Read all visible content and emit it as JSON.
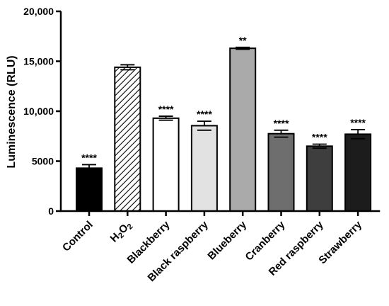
{
  "chart_data": {
    "type": "bar",
    "title": "",
    "xlabel": "",
    "ylabel": "Luminescence (RLU)",
    "ylim": [
      0,
      20000
    ],
    "yticks": [
      {
        "value": 0,
        "label": "0"
      },
      {
        "value": 5000,
        "label": "5000"
      },
      {
        "value": 10000,
        "label": "10,000"
      },
      {
        "value": 15000,
        "label": "15,000"
      },
      {
        "value": 20000,
        "label": "20,000"
      }
    ],
    "grid": false,
    "legend": "none",
    "categories": [
      {
        "name": "Control",
        "sub": ""
      },
      {
        "name": "H2O2",
        "sub": "2"
      },
      {
        "name": "Blackberry",
        "sub": ""
      },
      {
        "name": "Black raspberry",
        "sub": ""
      },
      {
        "name": "Blueberry",
        "sub": ""
      },
      {
        "name": "Cranberry",
        "sub": ""
      },
      {
        "name": "Red raspberry",
        "sub": ""
      },
      {
        "name": "Strawberry",
        "sub": ""
      }
    ],
    "values": [
      4300,
      14400,
      9300,
      8550,
      16300,
      7750,
      6500,
      7700
    ],
    "errors": [
      350,
      250,
      200,
      450,
      100,
      350,
      200,
      450
    ],
    "significance": [
      "****",
      "",
      "****",
      "****",
      "**",
      "****",
      "****",
      "****"
    ],
    "fills": [
      "#000000",
      "hatch",
      "#ffffff",
      "#e2e2e2",
      "#aaaaaa",
      "#6e6e6e",
      "#3e3e3e",
      "#1c1c1c"
    ]
  }
}
